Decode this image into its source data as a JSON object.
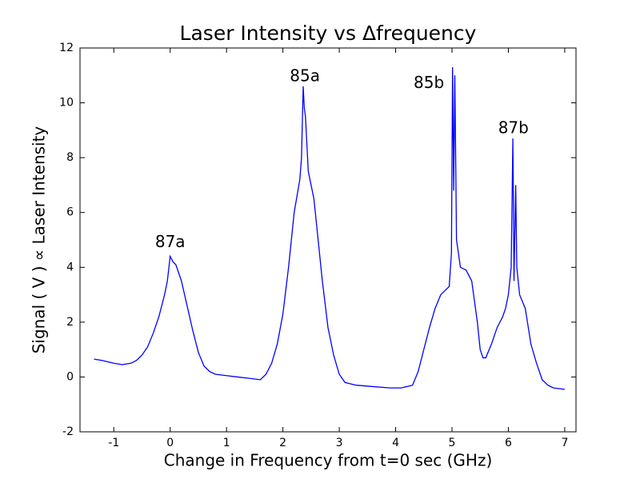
{
  "chart_data": {
    "type": "line",
    "title": "Laser Intensity vs Δfrequency",
    "x_label": "Change in Frequency from t=0 sec (GHz)",
    "y_label": "Signal ( V ) ∝ Laser Intensity",
    "xlim": [
      -1.6,
      7.2
    ],
    "ylim": [
      -2,
      12
    ],
    "xticks": [
      -1,
      0,
      1,
      2,
      3,
      4,
      5,
      6,
      7
    ],
    "yticks": [
      -2,
      0,
      2,
      4,
      6,
      8,
      10,
      12
    ],
    "grid": false,
    "annotations": [
      {
        "text": "87a",
        "x": 0.0,
        "y": 4.9
      },
      {
        "text": "85a",
        "x": 2.39,
        "y": 10.95
      },
      {
        "text": "85b",
        "x": 4.59,
        "y": 10.7
      },
      {
        "text": "87b",
        "x": 6.09,
        "y": 9.05
      }
    ],
    "x": [
      -1.35,
      -1.2,
      -1.0,
      -0.85,
      -0.7,
      -0.6,
      -0.5,
      -0.4,
      -0.3,
      -0.2,
      -0.1,
      -0.05,
      0.0,
      0.05,
      0.1,
      0.2,
      0.3,
      0.4,
      0.5,
      0.6,
      0.7,
      0.8,
      1.0,
      1.2,
      1.4,
      1.6,
      1.7,
      1.8,
      1.9,
      2.0,
      2.1,
      2.2,
      2.3,
      2.33,
      2.36,
      2.38,
      2.4,
      2.45,
      2.55,
      2.6,
      2.7,
      2.8,
      2.9,
      3.0,
      3.1,
      3.3,
      3.6,
      3.9,
      4.1,
      4.3,
      4.4,
      4.5,
      4.6,
      4.7,
      4.8,
      4.9,
      4.95,
      4.99,
      5.01,
      5.03,
      5.05,
      5.08,
      5.15,
      5.25,
      5.35,
      5.45,
      5.5,
      5.55,
      5.6,
      5.7,
      5.8,
      5.9,
      5.95,
      6.0,
      6.05,
      6.08,
      6.1,
      6.13,
      6.15,
      6.2,
      6.3,
      6.4,
      6.5,
      6.6,
      6.7,
      6.8,
      7.0
    ],
    "series": [
      {
        "color": "#0000ff",
        "values": [
          0.65,
          0.6,
          0.5,
          0.45,
          0.5,
          0.6,
          0.8,
          1.1,
          1.6,
          2.2,
          3.0,
          3.5,
          4.4,
          4.2,
          4.1,
          3.5,
          2.6,
          1.7,
          0.9,
          0.4,
          0.2,
          0.1,
          0.05,
          0.0,
          -0.05,
          -0.1,
          0.1,
          0.5,
          1.2,
          2.3,
          4.0,
          6.0,
          7.2,
          8.0,
          10.6,
          9.8,
          9.5,
          7.5,
          6.5,
          5.5,
          3.5,
          1.8,
          0.8,
          0.1,
          -0.2,
          -0.3,
          -0.35,
          -0.4,
          -0.4,
          -0.3,
          0.2,
          1.0,
          1.8,
          2.5,
          3.0,
          3.2,
          3.3,
          4.5,
          11.3,
          6.8,
          11.0,
          5.0,
          4.0,
          3.9,
          3.5,
          2.0,
          1.0,
          0.7,
          0.7,
          1.2,
          1.8,
          2.2,
          2.5,
          3.0,
          4.0,
          8.7,
          3.5,
          7.0,
          4.0,
          3.0,
          2.5,
          1.2,
          0.5,
          -0.1,
          -0.3,
          -0.4,
          -0.45
        ]
      }
    ]
  }
}
